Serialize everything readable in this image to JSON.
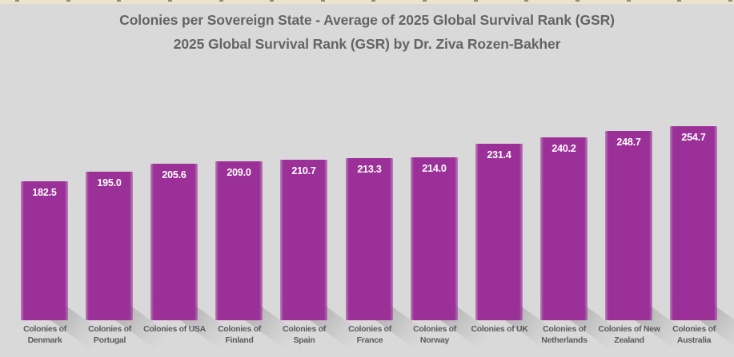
{
  "colors": {
    "background": "#d9d9d9",
    "bar": "#9b3198",
    "bar_edge_soft": "rgba(155,49,152,0.5)",
    "title_text": "#646464",
    "category_text": "#5c5c5c",
    "value_text": "#ffffff",
    "ruler_strip": "#ece3cd",
    "ruler_tick": "#6e6d5f"
  },
  "chart_data": {
    "type": "bar",
    "title": "Colonies per Sovereign State - Average of 2025 Global Survival Rank (GSR)",
    "subtitle": "2025 Global Survival Rank (GSR) by Dr. Ziva Rozen-Bakher",
    "categories": [
      "Colonies of Denmark",
      "Colonies of Portugal",
      "Colonies of USA",
      "Colonies of Finland",
      "Colonies of Spain",
      "Colonies of France",
      "Colonies of Norway",
      "Colonies of UK",
      "Colonies of Netherlands",
      "Colonies of New Zealand",
      "Colonies of Australia"
    ],
    "category_label_lines": [
      [
        "Colonies of",
        "Denmark"
      ],
      [
        "Colonies of",
        "Portugal"
      ],
      [
        "Colonies of USA"
      ],
      [
        "Colonies of",
        "Finland"
      ],
      [
        "Colonies of",
        "Spain"
      ],
      [
        "Colonies of",
        "France"
      ],
      [
        "Colonies of",
        "Norway"
      ],
      [
        "Colonies of UK"
      ],
      [
        "Colonies of",
        "Netherlands"
      ],
      [
        "Colonies of New",
        "Zealand"
      ],
      [
        "Colonies of",
        "Australia"
      ]
    ],
    "values": [
      182.5,
      195.0,
      205.6,
      209.0,
      210.7,
      213.3,
      214.0,
      231.4,
      240.2,
      248.7,
      254.7
    ],
    "value_labels": [
      "182.5",
      "195.0",
      "205.6",
      "209.0",
      "210.7",
      "213.3",
      "214.0",
      "231.4",
      "240.2",
      "248.7",
      "254.7"
    ],
    "ylim": [
      0,
      270
    ],
    "xlabel": "",
    "ylabel": "",
    "axes_visible": false,
    "gridlines": false,
    "legend": "none",
    "data_labels": "inside-end"
  }
}
